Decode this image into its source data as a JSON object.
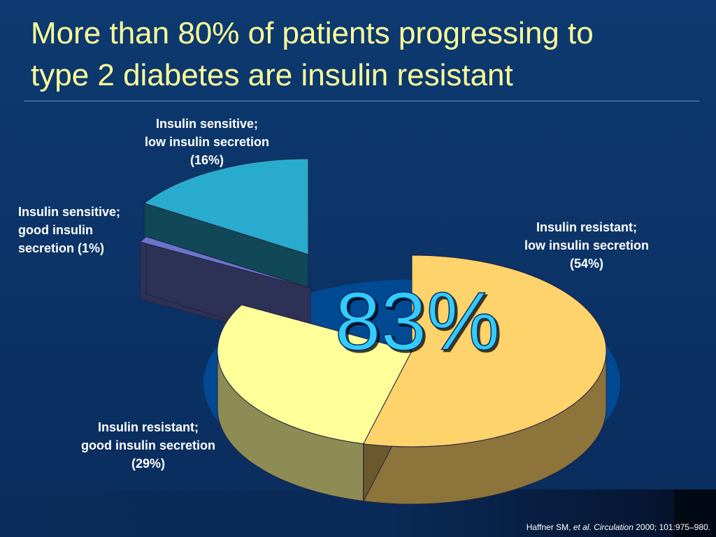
{
  "slide": {
    "title_line1": "More than 80% of patients progressing to",
    "title_line2": "type 2 diabetes are insulin resistant",
    "highlight": "83%"
  },
  "citation": {
    "authors": "Haffner SM, ",
    "etal": "et al. ",
    "journal": "Circulation",
    "rest": " 2000; 101:975–980."
  },
  "colors": {
    "title": "#ffff99",
    "background": "#0c3466",
    "resistant_low": "#ffd36b",
    "resistant_good": "#ffff99",
    "sensitive_low": "#29abce",
    "sensitive_good": "#6b75cc",
    "highlight": "#33ccff"
  },
  "chart_data": {
    "type": "pie",
    "title": "",
    "slices": [
      {
        "label_line1": "Insulin resistant;",
        "label_line2": "low insulin secretion",
        "label_line3": "(54%)",
        "value": 54,
        "color": "#ffd36b"
      },
      {
        "label_line1": "Insulin resistant;",
        "label_line2": "good insulin secretion",
        "label_line3": "(29%)",
        "value": 29,
        "color": "#ffff99"
      },
      {
        "label_line1": "Insulin sensitive;",
        "label_line2": "good insulin",
        "label_line3": "secretion (1%)",
        "value": 1,
        "color": "#6b75cc"
      },
      {
        "label_line1": "Insulin sensitive;",
        "label_line2": "low insulin secretion",
        "label_line3": "(16%)",
        "value": 16,
        "color": "#29abce"
      }
    ]
  }
}
